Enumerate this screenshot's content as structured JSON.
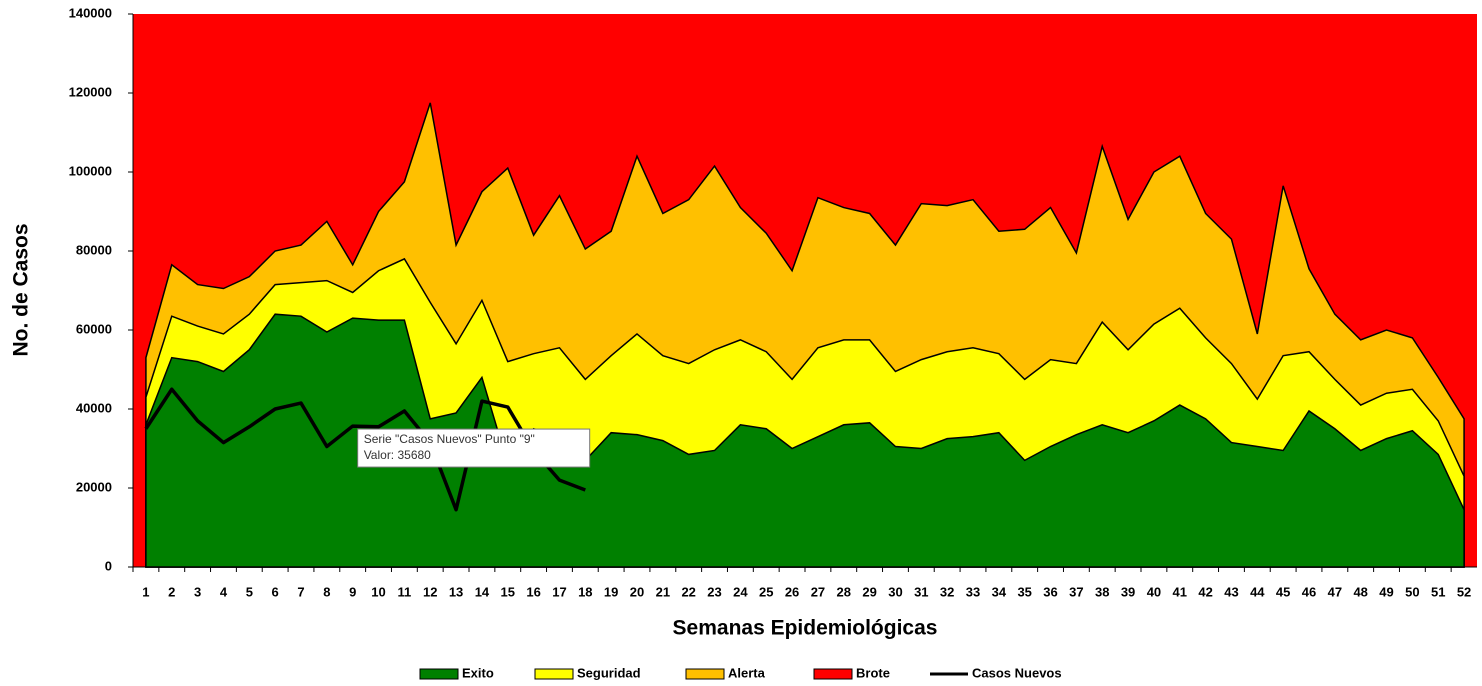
{
  "chart_data": {
    "type": "area",
    "y_label": "No. de Casos",
    "x_label": "Semanas Epidemiológicas",
    "categories": [
      "1",
      "2",
      "3",
      "4",
      "5",
      "6",
      "7",
      "8",
      "9",
      "10",
      "11",
      "12",
      "13",
      "14",
      "15",
      "16",
      "17",
      "18",
      "19",
      "20",
      "21",
      "22",
      "23",
      "24",
      "25",
      "26",
      "27",
      "28",
      "29",
      "30",
      "31",
      "32",
      "33",
      "34",
      "35",
      "36",
      "37",
      "38",
      "39",
      "40",
      "41",
      "42",
      "43",
      "44",
      "45",
      "46",
      "47",
      "48",
      "49",
      "50",
      "51",
      "52"
    ],
    "ylim": [
      0,
      140000
    ],
    "yticks": [
      0,
      20000,
      40000,
      60000,
      80000,
      100000,
      120000,
      140000
    ],
    "series": [
      {
        "name": "Exito",
        "color": "#008000",
        "values": [
          36000,
          53000,
          52000,
          49500,
          55000,
          64000,
          63500,
          59500,
          63000,
          62500,
          62500,
          37500,
          39000,
          48000,
          26000,
          35000,
          32500,
          27000,
          34000,
          33500,
          32000,
          28500,
          29500,
          36000,
          35000,
          30000,
          33000,
          36000,
          36500,
          30500,
          30000,
          32500,
          33000,
          34000,
          27000,
          30500,
          33500,
          36000,
          34000,
          37000,
          41000,
          37500,
          31500,
          30500,
          29500,
          39500,
          35000,
          29500,
          32500,
          34500,
          28500,
          14500
        ]
      },
      {
        "name": "Seguridad",
        "color": "#ffff00",
        "values": [
          43000,
          63500,
          61000,
          59000,
          64000,
          71500,
          72000,
          72500,
          69500,
          75000,
          78000,
          67000,
          56500,
          67500,
          52000,
          54000,
          55500,
          47500,
          53500,
          59000,
          53500,
          51500,
          55000,
          57500,
          54500,
          47500,
          55500,
          57500,
          57500,
          49500,
          52500,
          54500,
          55500,
          54000,
          47500,
          52500,
          51500,
          62000,
          55000,
          61500,
          65500,
          58000,
          51500,
          42500,
          53500,
          54500,
          47500,
          41000,
          44000,
          45000,
          37000,
          23000
        ]
      },
      {
        "name": "Alerta",
        "color": "#ffc000",
        "values": [
          53000,
          76500,
          71500,
          70500,
          73500,
          80000,
          81500,
          87500,
          76500,
          90000,
          97500,
          117500,
          81500,
          95000,
          101000,
          84000,
          94000,
          80500,
          85000,
          104000,
          89500,
          93000,
          101500,
          91000,
          84500,
          75000,
          93500,
          91000,
          89500,
          81500,
          92000,
          91500,
          93000,
          85000,
          85500,
          91000,
          79500,
          106500,
          88000,
          100000,
          104000,
          89500,
          83000,
          59000,
          96500,
          75500,
          64000,
          57500,
          60000,
          58000,
          48000,
          37500
        ]
      },
      {
        "name": "Brote",
        "color": "#ff0000",
        "values": [
          140000,
          140000,
          140000,
          140000,
          140000,
          140000,
          140000,
          140000,
          140000,
          140000,
          140000,
          140000,
          140000,
          140000,
          140000,
          140000,
          140000,
          140000,
          140000,
          140000,
          140000,
          140000,
          140000,
          140000,
          140000,
          140000,
          140000,
          140000,
          140000,
          140000,
          140000,
          140000,
          140000,
          140000,
          140000,
          140000,
          140000,
          140000,
          140000,
          140000,
          140000,
          140000,
          140000,
          140000,
          140000,
          140000,
          140000,
          140000,
          140000,
          140000,
          140000,
          140000
        ]
      },
      {
        "name": "Casos Nuevos",
        "type": "line",
        "color": "#000000",
        "values": [
          35000,
          45000,
          37000,
          31500,
          35500,
          40000,
          41500,
          30500,
          35680,
          35500,
          39500,
          31500,
          14500,
          42000,
          40500,
          29500,
          22000,
          19500,
          null,
          null,
          null,
          null,
          null,
          null,
          null,
          null,
          null,
          null,
          null,
          null,
          null,
          null,
          null,
          null,
          null,
          null,
          null,
          null,
          null,
          null,
          null,
          null,
          null,
          null,
          null,
          null,
          null,
          null,
          null,
          null,
          null,
          null
        ]
      }
    ],
    "tooltip": {
      "series_label": "Serie \"Casos Nuevos\" Punto \"9\"",
      "value_label": "Valor: 35680"
    }
  }
}
